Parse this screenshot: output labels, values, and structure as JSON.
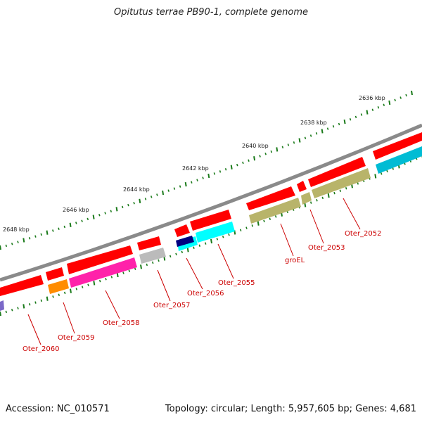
{
  "title": "Opitutus terrae PB90-1, complete genome",
  "footer": {
    "accession": "Accession: NC_010571",
    "topology": "Topology: circular; Length: 5,957,605 bp; Genes: 4,681"
  },
  "colors": {
    "backbone": "#8a8a8a",
    "ticks": "#1a7a1a",
    "label": "#cc0000",
    "cds": "#ff0000",
    "teal": "#00bcd4",
    "olive": "#b8b46a",
    "magenta": "#ff22aa",
    "orange": "#ff8c00",
    "gray": "#bbbbbb",
    "navy": "#000080",
    "cyan": "#00ffff",
    "purple": "#7b68c8"
  },
  "map": {
    "kbp_labels": [
      "2636 kbp",
      "2638 kbp",
      "2640 kbp",
      "2642 kbp",
      "2644 kbp",
      "2646 kbp",
      "2648 kbp"
    ],
    "gene_labels": [
      "Oter_2052",
      "Oter_2053",
      "groEL",
      "Oter_2055",
      "Oter_2056",
      "Oter_2057",
      "Oter_2058",
      "Oter_2059",
      "Oter_2060"
    ]
  }
}
